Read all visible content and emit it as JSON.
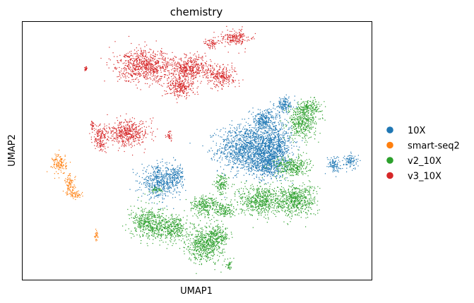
{
  "chart_data": {
    "type": "scatter",
    "title": "chemistry",
    "xlabel": "UMAP1",
    "ylabel": "UMAP2",
    "xticks": [],
    "yticks": [],
    "grid": false,
    "legend_position": "right",
    "series": [
      {
        "name": "10X",
        "color": "#1f77b4",
        "clusters": [
          {
            "cx": 0.64,
            "cy": 0.51,
            "rx": 0.08,
            "ry": 0.09
          },
          {
            "cx": 0.72,
            "cy": 0.52,
            "rx": 0.05,
            "ry": 0.1
          },
          {
            "cx": 0.7,
            "cy": 0.45,
            "rx": 0.05,
            "ry": 0.05
          },
          {
            "cx": 0.69,
            "cy": 0.62,
            "rx": 0.04,
            "ry": 0.04
          },
          {
            "cx": 0.75,
            "cy": 0.68,
            "rx": 0.03,
            "ry": 0.03
          },
          {
            "cx": 0.39,
            "cy": 0.38,
            "rx": 0.05,
            "ry": 0.06
          },
          {
            "cx": 0.44,
            "cy": 0.4,
            "rx": 0.02,
            "ry": 0.05
          },
          {
            "cx": 0.89,
            "cy": 0.45,
            "rx": 0.02,
            "ry": 0.03
          },
          {
            "cx": 0.94,
            "cy": 0.46,
            "rx": 0.02,
            "ry": 0.03
          }
        ]
      },
      {
        "name": "smart-seq2",
        "color": "#ff7f0e",
        "clusters": [
          {
            "cx": 0.105,
            "cy": 0.45,
            "rx": 0.02,
            "ry": 0.04
          },
          {
            "cx": 0.135,
            "cy": 0.37,
            "rx": 0.015,
            "ry": 0.04
          },
          {
            "cx": 0.15,
            "cy": 0.33,
            "rx": 0.02,
            "ry": 0.015
          },
          {
            "cx": 0.21,
            "cy": 0.17,
            "rx": 0.005,
            "ry": 0.02
          }
        ]
      },
      {
        "name": "v2_10X",
        "color": "#2ca02c",
        "clusters": [
          {
            "cx": 0.8,
            "cy": 0.61,
            "rx": 0.04,
            "ry": 0.06
          },
          {
            "cx": 0.82,
            "cy": 0.67,
            "rx": 0.04,
            "ry": 0.03
          },
          {
            "cx": 0.77,
            "cy": 0.44,
            "rx": 0.05,
            "ry": 0.04
          },
          {
            "cx": 0.68,
            "cy": 0.31,
            "rx": 0.06,
            "ry": 0.06
          },
          {
            "cx": 0.78,
            "cy": 0.31,
            "rx": 0.06,
            "ry": 0.06
          },
          {
            "cx": 0.58,
            "cy": 0.27,
            "rx": 0.03,
            "ry": 0.03
          },
          {
            "cx": 0.36,
            "cy": 0.22,
            "rx": 0.05,
            "ry": 0.06
          },
          {
            "cx": 0.43,
            "cy": 0.2,
            "rx": 0.04,
            "ry": 0.05
          },
          {
            "cx": 0.52,
            "cy": 0.14,
            "rx": 0.05,
            "ry": 0.07
          },
          {
            "cx": 0.56,
            "cy": 0.17,
            "rx": 0.03,
            "ry": 0.04
          },
          {
            "cx": 0.57,
            "cy": 0.37,
            "rx": 0.02,
            "ry": 0.04
          },
          {
            "cx": 0.52,
            "cy": 0.29,
            "rx": 0.04,
            "ry": 0.04
          },
          {
            "cx": 0.38,
            "cy": 0.35,
            "rx": 0.02,
            "ry": 0.01
          },
          {
            "cx": 0.59,
            "cy": 0.06,
            "rx": 0.01,
            "ry": 0.02
          }
        ]
      },
      {
        "name": "v3_10X",
        "color": "#d62728",
        "clusters": [
          {
            "cx": 0.35,
            "cy": 0.83,
            "rx": 0.08,
            "ry": 0.06
          },
          {
            "cx": 0.48,
            "cy": 0.82,
            "rx": 0.06,
            "ry": 0.05
          },
          {
            "cx": 0.45,
            "cy": 0.75,
            "rx": 0.04,
            "ry": 0.04
          },
          {
            "cx": 0.57,
            "cy": 0.79,
            "rx": 0.04,
            "ry": 0.04
          },
          {
            "cx": 0.61,
            "cy": 0.94,
            "rx": 0.04,
            "ry": 0.03
          },
          {
            "cx": 0.54,
            "cy": 0.92,
            "rx": 0.02,
            "ry": 0.02
          },
          {
            "cx": 0.3,
            "cy": 0.57,
            "rx": 0.06,
            "ry": 0.05
          },
          {
            "cx": 0.22,
            "cy": 0.55,
            "rx": 0.02,
            "ry": 0.05
          },
          {
            "cx": 0.42,
            "cy": 0.56,
            "rx": 0.01,
            "ry": 0.02
          },
          {
            "cx": 0.18,
            "cy": 0.82,
            "rx": 0.005,
            "ry": 0.01
          },
          {
            "cx": 0.2,
            "cy": 0.6,
            "rx": 0.005,
            "ry": 0.02
          }
        ]
      }
    ]
  }
}
